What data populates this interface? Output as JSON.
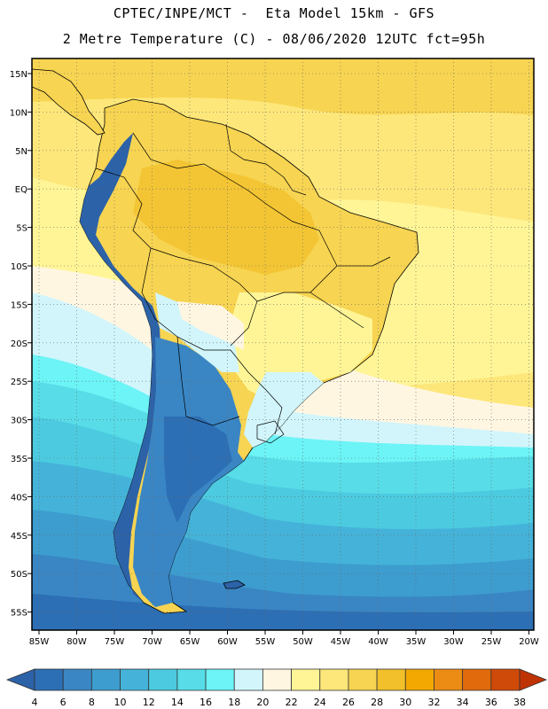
{
  "title": {
    "line1": "CPTEC/INPE/MCT -  Eta Model 15km - GFS",
    "line2": "2 Metre Temperature (C) - 08/06/2020 12UTC fct=95h"
  },
  "map": {
    "lat_labels": [
      "15N",
      "10N",
      "5N",
      "EQ",
      "5S",
      "10S",
      "15S",
      "20S",
      "25S",
      "30S",
      "35S",
      "40S",
      "45S",
      "50S",
      "55S"
    ],
    "lon_labels": [
      "85W",
      "80W",
      "75W",
      "70W",
      "65W",
      "60W",
      "55W",
      "50W",
      "45W",
      "40W",
      "35W",
      "30W",
      "25W",
      "20W"
    ],
    "grid": "dotted"
  },
  "legend": {
    "ticks": [
      "4",
      "6",
      "8",
      "10",
      "12",
      "14",
      "16",
      "18",
      "20",
      "22",
      "24",
      "26",
      "28",
      "30",
      "32",
      "34",
      "36",
      "38"
    ],
    "colors": [
      "#2c62a8",
      "#2c6fb5",
      "#3a86c4",
      "#3d9dcf",
      "#45b3d9",
      "#4ccbe0",
      "#58dde8",
      "#6cf4f6",
      "#d1f5fb",
      "#fff6e2",
      "#fff596",
      "#fde77a",
      "#f7d451",
      "#f1c02b",
      "#f2a800",
      "#ec8c14",
      "#e06a0c",
      "#cf4a08",
      "#bf3204"
    ]
  }
}
